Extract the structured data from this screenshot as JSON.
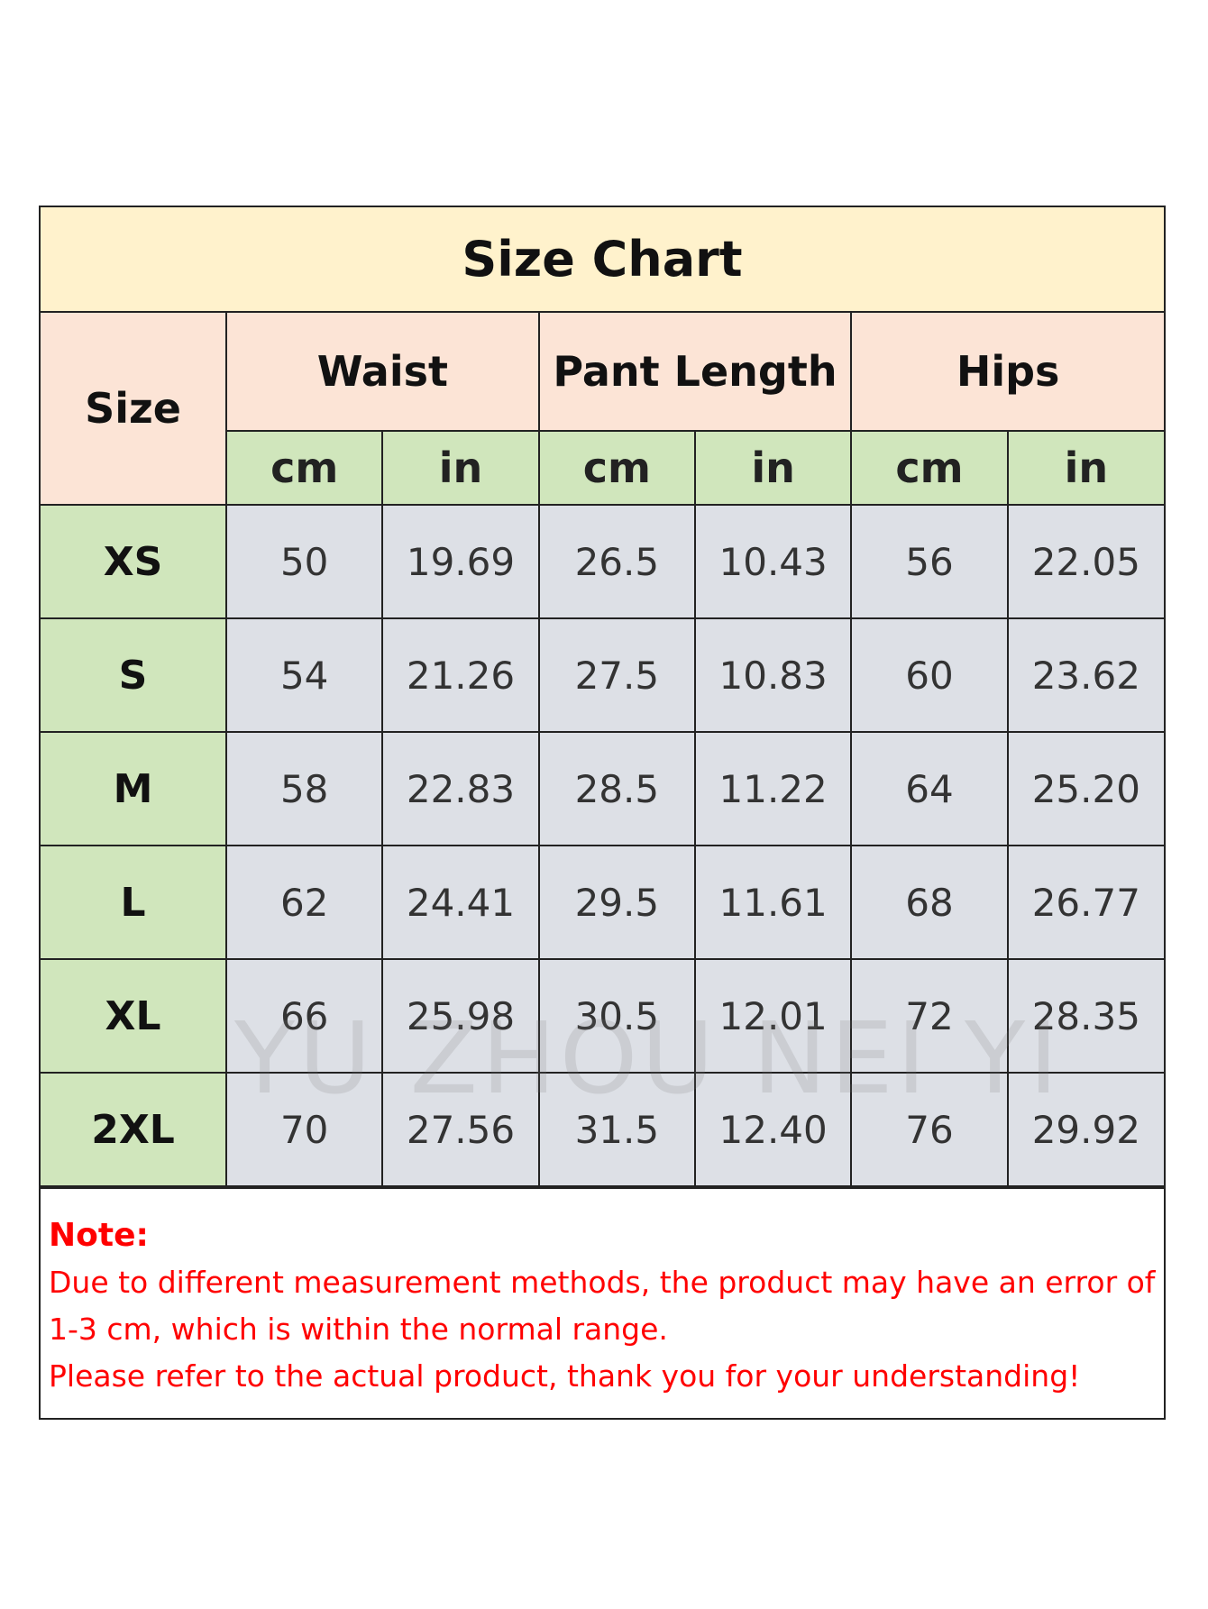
{
  "title": "Size Chart",
  "headers": {
    "size": "Size",
    "groups": [
      "Waist",
      "Pant Length",
      "Hips"
    ],
    "units": [
      "cm",
      "in",
      "cm",
      "in",
      "cm",
      "in"
    ]
  },
  "rows": [
    {
      "size": "XS",
      "values": [
        "50",
        "19.69",
        "26.5",
        "10.43",
        "56",
        "22.05"
      ]
    },
    {
      "size": "S",
      "values": [
        "54",
        "21.26",
        "27.5",
        "10.83",
        "60",
        "23.62"
      ]
    },
    {
      "size": "M",
      "values": [
        "58",
        "22.83",
        "28.5",
        "11.22",
        "64",
        "25.20"
      ]
    },
    {
      "size": "L",
      "values": [
        "62",
        "24.41",
        "29.5",
        "11.61",
        "68",
        "26.77"
      ]
    },
    {
      "size": "XL",
      "values": [
        "66",
        "25.98",
        "30.5",
        "12.01",
        "72",
        "28.35"
      ]
    },
    {
      "size": "2XL",
      "values": [
        "70",
        "27.56",
        "31.5",
        "12.40",
        "76",
        "29.92"
      ]
    }
  ],
  "note": {
    "label": "Note:",
    "line1": "Due to different measurement methods, the product may have an error of 1-3 cm, which is within the normal range.",
    "line2": "Please refer to the actual product, thank you for your understanding!"
  },
  "watermark": "YU ZHOU NEI YI",
  "colors": {
    "title_bg": "#FFF2CC",
    "header_bg": "#FCE4D6",
    "size_bg": "#D0E6BC",
    "cell_bg": "#DDE0E6",
    "note_text": "#FF0000"
  }
}
